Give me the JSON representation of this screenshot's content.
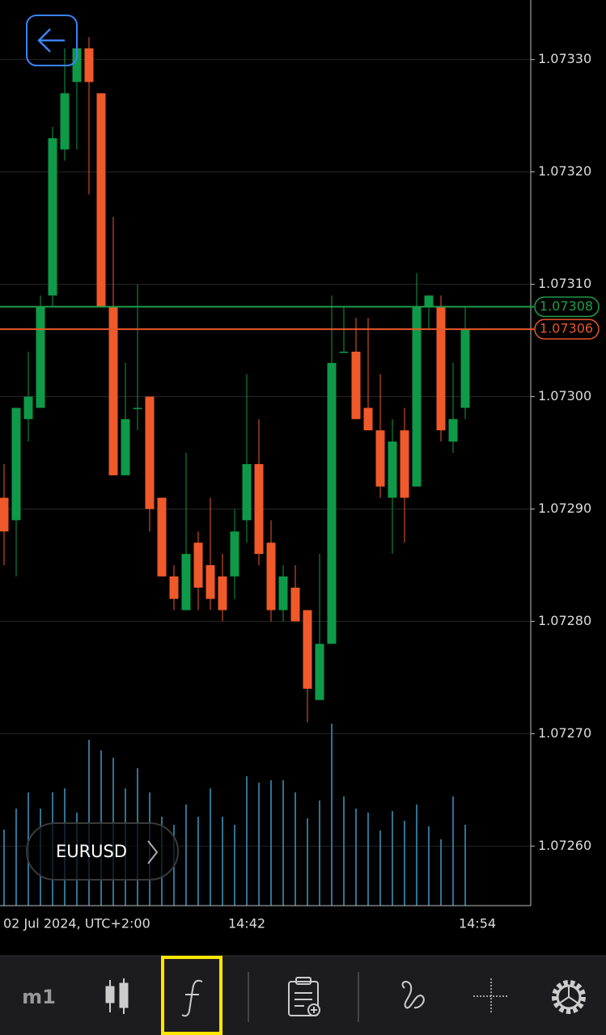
{
  "chart_data": {
    "type": "candlestick",
    "symbol": "EURUSD",
    "timeframe": "m1",
    "categories": [
      "02 Jul 2024, UTC+2:00",
      null,
      null,
      null,
      null,
      null,
      null,
      null,
      null,
      null,
      null,
      null,
      null,
      null,
      null,
      null,
      null,
      null,
      null,
      null,
      "14:42",
      null,
      null,
      null,
      null,
      null,
      null,
      null,
      null,
      null,
      null,
      null,
      null,
      null,
      null,
      null,
      null,
      null,
      null,
      "14:54",
      null,
      null,
      null,
      null
    ],
    "open": [
      1.07291,
      1.07289,
      1.07298,
      1.07299,
      1.07309,
      1.07322,
      1.07328,
      1.07331,
      1.07327,
      1.07308,
      1.07293,
      1.07299,
      1.073,
      1.07291,
      1.07284,
      1.07281,
      1.07287,
      1.07285,
      1.07284,
      1.07284,
      1.07289,
      1.07294,
      1.07287,
      1.07281,
      1.07283,
      1.07281,
      1.07273,
      1.07278,
      1.07304,
      1.07304,
      1.07299,
      1.07297,
      1.07291,
      1.07297,
      1.07292,
      1.07308,
      1.07308,
      1.07296,
      1.07299,
      null,
      null,
      null,
      null,
      null
    ],
    "high": [
      1.07294,
      1.07299,
      1.07304,
      1.07309,
      1.07324,
      1.07331,
      1.07332,
      1.07332,
      1.07327,
      1.07316,
      1.07303,
      1.0731,
      1.073,
      1.07291,
      1.07285,
      1.07295,
      1.07288,
      1.07291,
      1.07286,
      1.0729,
      1.07302,
      1.07298,
      1.07289,
      1.07285,
      1.07285,
      1.07281,
      1.07286,
      1.07309,
      1.07308,
      1.07307,
      1.07307,
      1.07302,
      1.07298,
      1.07299,
      1.07311,
      1.07309,
      1.07309,
      1.07303,
      1.07308,
      null,
      null,
      null,
      null,
      null
    ],
    "low": [
      1.07285,
      1.07284,
      1.07296,
      1.07299,
      1.07308,
      1.07321,
      1.07322,
      1.07318,
      1.07308,
      1.07293,
      1.07293,
      1.07297,
      1.07288,
      1.07284,
      1.07281,
      1.07281,
      1.07281,
      1.07281,
      1.0728,
      1.07282,
      1.07287,
      1.07285,
      1.0728,
      1.0728,
      1.0728,
      1.07271,
      1.07273,
      1.07278,
      1.07304,
      1.07298,
      1.07297,
      1.07291,
      1.07286,
      1.07287,
      1.07292,
      1.07306,
      1.07296,
      1.07295,
      1.07298,
      null,
      null,
      null,
      null,
      null
    ],
    "close": [
      1.07288,
      1.07299,
      1.073,
      1.07308,
      1.07323,
      1.07327,
      1.07331,
      1.07328,
      1.07308,
      1.07293,
      1.07298,
      1.07299,
      1.0729,
      1.07284,
      1.07282,
      1.07286,
      1.07283,
      1.07282,
      1.07281,
      1.07288,
      1.07294,
      1.07286,
      1.07281,
      1.07284,
      1.0728,
      1.07274,
      1.07278,
      1.07303,
      1.07304,
      1.07298,
      1.07297,
      1.07292,
      1.07296,
      1.07291,
      1.07308,
      1.07309,
      1.07297,
      1.07298,
      1.07306,
      null,
      null,
      null,
      null,
      null
    ],
    "volume": [
      94,
      120,
      140,
      120,
      140,
      145,
      115,
      205,
      192,
      183,
      145,
      170,
      140,
      110,
      100,
      125,
      110,
      145,
      110,
      100,
      160,
      152,
      155,
      155,
      140,
      108,
      130,
      225,
      135,
      120,
      115,
      93,
      117,
      105,
      125,
      98,
      82,
      135,
      100,
      null,
      null,
      null,
      null,
      null
    ],
    "up_color": "#0e9a48",
    "down_color": "#f0592a",
    "volume_color": "#2f7393",
    "ylim": [
      1.072547,
      1.073353
    ],
    "yticks": [
      {
        "value": 1.0726,
        "label": "1.07260"
      },
      {
        "value": 1.0727,
        "label": "1.07270"
      },
      {
        "value": 1.0728,
        "label": "1.07280"
      },
      {
        "value": 1.0729,
        "label": "1.07290"
      },
      {
        "value": 1.073,
        "label": "1.07300"
      },
      {
        "value": 1.0731,
        "label": "1.07310"
      },
      {
        "value": 1.0732,
        "label": "1.07320"
      },
      {
        "value": 1.0733,
        "label": "1.07330"
      }
    ],
    "grid": true,
    "price_lines": [
      {
        "value": 1.07308,
        "label": "1.07308",
        "color": "#1e9e4a"
      },
      {
        "value": 1.07306,
        "label": "1.07306",
        "color": "#e8572a"
      }
    ]
  }
}
